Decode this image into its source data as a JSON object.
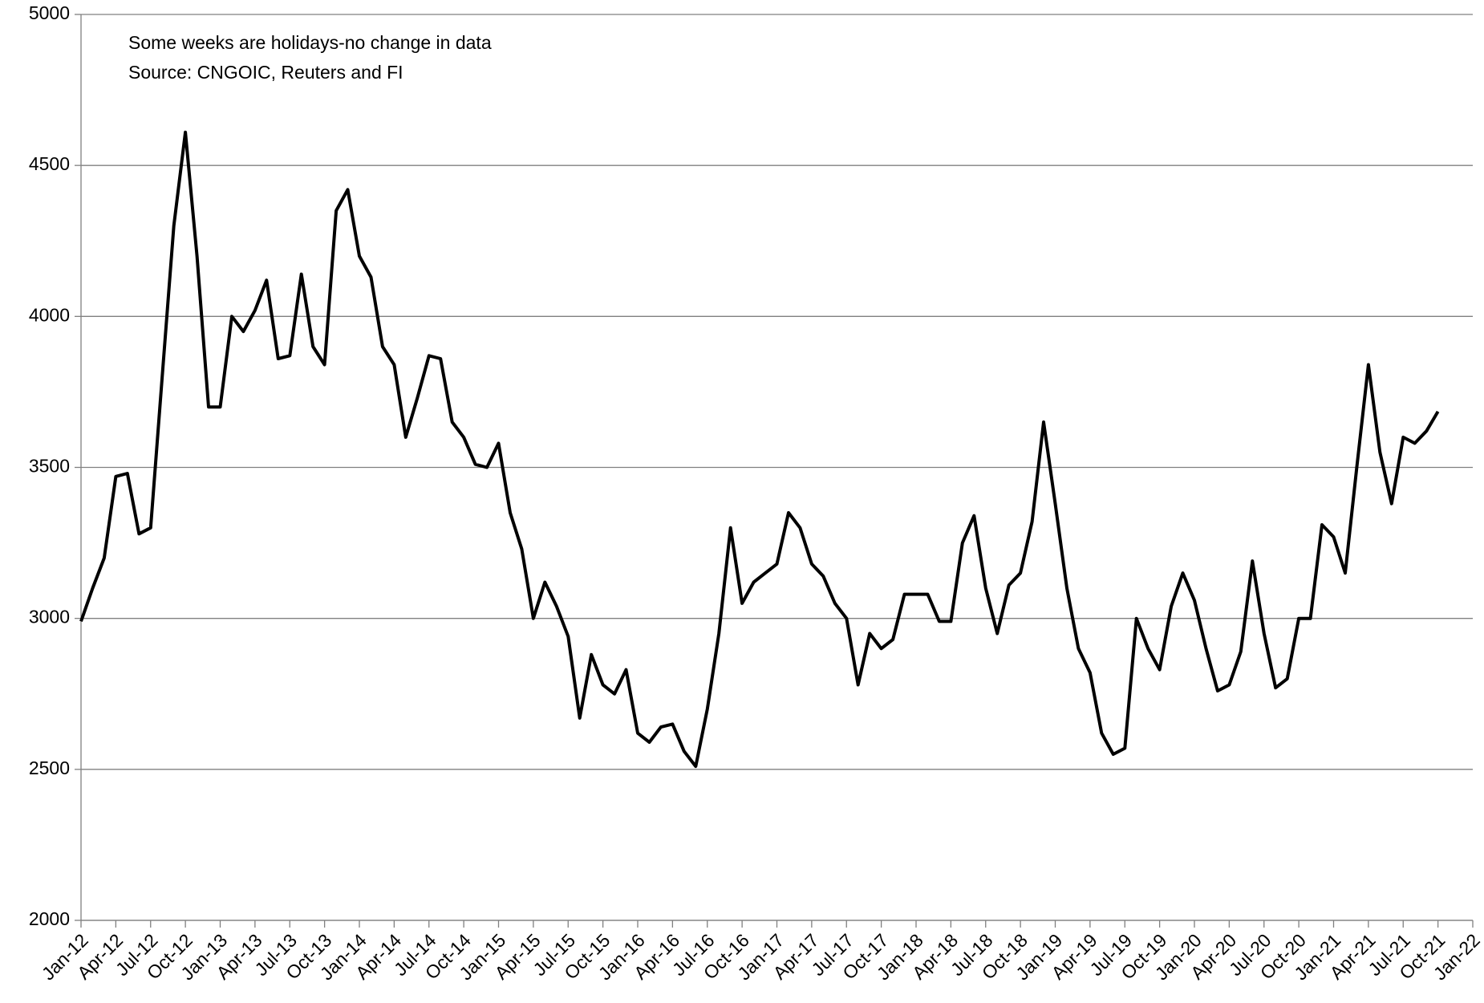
{
  "chart_data": {
    "type": "line",
    "annotations": [
      "Some weeks are holidays-no change in data",
      "Source: CNGOIC, Reuters and FI"
    ],
    "x": [
      "2012-01",
      "2012-02",
      "2012-03",
      "2012-04",
      "2012-05",
      "2012-06",
      "2012-07",
      "2012-08",
      "2012-09",
      "2012-10",
      "2012-11",
      "2012-12",
      "2013-01",
      "2013-02",
      "2013-03",
      "2013-04",
      "2013-05",
      "2013-06",
      "2013-07",
      "2013-08",
      "2013-09",
      "2013-10",
      "2013-11",
      "2013-12",
      "2014-01",
      "2014-02",
      "2014-03",
      "2014-04",
      "2014-05",
      "2014-06",
      "2014-07",
      "2014-08",
      "2014-09",
      "2014-10",
      "2014-11",
      "2014-12",
      "2015-01",
      "2015-02",
      "2015-03",
      "2015-04",
      "2015-05",
      "2015-06",
      "2015-07",
      "2015-08",
      "2015-09",
      "2015-10",
      "2015-11",
      "2015-12",
      "2016-01",
      "2016-02",
      "2016-03",
      "2016-04",
      "2016-05",
      "2016-06",
      "2016-07",
      "2016-08",
      "2016-09",
      "2016-10",
      "2016-11",
      "2016-12",
      "2017-01",
      "2017-02",
      "2017-03",
      "2017-04",
      "2017-05",
      "2017-06",
      "2017-07",
      "2017-08",
      "2017-09",
      "2017-10",
      "2017-11",
      "2017-12",
      "2018-01",
      "2018-02",
      "2018-03",
      "2018-04",
      "2018-05",
      "2018-06",
      "2018-07",
      "2018-08",
      "2018-09",
      "2018-10",
      "2018-11",
      "2018-12",
      "2019-01",
      "2019-02",
      "2019-03",
      "2019-04",
      "2019-05",
      "2019-06",
      "2019-07",
      "2019-08",
      "2019-09",
      "2019-10",
      "2019-11",
      "2019-12",
      "2020-01",
      "2020-02",
      "2020-03",
      "2020-04",
      "2020-05",
      "2020-06",
      "2020-07",
      "2020-08",
      "2020-09",
      "2020-10",
      "2020-11",
      "2020-12",
      "2021-01",
      "2021-02",
      "2021-03",
      "2021-04",
      "2021-05",
      "2021-06",
      "2021-07",
      "2021-08",
      "2021-09",
      "2021-10"
    ],
    "values": [
      2990,
      3100,
      3200,
      3470,
      3480,
      3280,
      3300,
      3800,
      4300,
      4610,
      4200,
      3700,
      3700,
      4000,
      3950,
      4020,
      4120,
      3860,
      3870,
      4140,
      3900,
      3840,
      4350,
      4420,
      4200,
      4130,
      3900,
      3840,
      3600,
      3730,
      3870,
      3860,
      3650,
      3600,
      3510,
      3500,
      3580,
      3350,
      3230,
      3000,
      3120,
      3040,
      2940,
      2670,
      2880,
      2780,
      2750,
      2830,
      2620,
      2590,
      2640,
      2650,
      2560,
      2510,
      2700,
      2950,
      3300,
      3050,
      3120,
      3150,
      3180,
      3350,
      3300,
      3180,
      3140,
      3050,
      3000,
      2780,
      2950,
      2900,
      2930,
      3080,
      3080,
      3080,
      2990,
      2990,
      3250,
      3340,
      3100,
      2950,
      3110,
      3150,
      3320,
      3650,
      3380,
      3100,
      2900,
      2820,
      2620,
      2550,
      2570,
      3000,
      2900,
      2830,
      3040,
      3150,
      3060,
      2900,
      2760,
      2780,
      2890,
      3190,
      2950,
      2770,
      2800,
      3000,
      3000,
      3310,
      3270,
      3150,
      3500,
      3840,
      3550,
      3380,
      3600,
      3580,
      3620,
      3685
    ],
    "color": "#000000",
    "xlim": [
      "2012-01",
      "2022-01"
    ],
    "xticks": [
      {
        "value": "2012-01",
        "label": "Jan-12"
      },
      {
        "value": "2012-04",
        "label": "Apr-12"
      },
      {
        "value": "2012-07",
        "label": "Jul-12"
      },
      {
        "value": "2012-10",
        "label": "Oct-12"
      },
      {
        "value": "2013-01",
        "label": "Jan-13"
      },
      {
        "value": "2013-04",
        "label": "Apr-13"
      },
      {
        "value": "2013-07",
        "label": "Jul-13"
      },
      {
        "value": "2013-10",
        "label": "Oct-13"
      },
      {
        "value": "2014-01",
        "label": "Jan-14"
      },
      {
        "value": "2014-04",
        "label": "Apr-14"
      },
      {
        "value": "2014-07",
        "label": "Jul-14"
      },
      {
        "value": "2014-10",
        "label": "Oct-14"
      },
      {
        "value": "2015-01",
        "label": "Jan-15"
      },
      {
        "value": "2015-04",
        "label": "Apr-15"
      },
      {
        "value": "2015-07",
        "label": "Jul-15"
      },
      {
        "value": "2015-10",
        "label": "Oct-15"
      },
      {
        "value": "2016-01",
        "label": "Jan-16"
      },
      {
        "value": "2016-04",
        "label": "Apr-16"
      },
      {
        "value": "2016-07",
        "label": "Jul-16"
      },
      {
        "value": "2016-10",
        "label": "Oct-16"
      },
      {
        "value": "2017-01",
        "label": "Jan-17"
      },
      {
        "value": "2017-04",
        "label": "Apr-17"
      },
      {
        "value": "2017-07",
        "label": "Jul-17"
      },
      {
        "value": "2017-10",
        "label": "Oct-17"
      },
      {
        "value": "2018-01",
        "label": "Jan-18"
      },
      {
        "value": "2018-04",
        "label": "Apr-18"
      },
      {
        "value": "2018-07",
        "label": "Jul-18"
      },
      {
        "value": "2018-10",
        "label": "Oct-18"
      },
      {
        "value": "2019-01",
        "label": "Jan-19"
      },
      {
        "value": "2019-04",
        "label": "Apr-19"
      },
      {
        "value": "2019-07",
        "label": "Jul-19"
      },
      {
        "value": "2019-10",
        "label": "Oct-19"
      },
      {
        "value": "2020-01",
        "label": "Jan-20"
      },
      {
        "value": "2020-04",
        "label": "Apr-20"
      },
      {
        "value": "2020-07",
        "label": "Jul-20"
      },
      {
        "value": "2020-10",
        "label": "Oct-20"
      },
      {
        "value": "2021-01",
        "label": "Jan-21"
      },
      {
        "value": "2021-04",
        "label": "Apr-21"
      },
      {
        "value": "2021-07",
        "label": "Jul-21"
      },
      {
        "value": "2021-10",
        "label": "Oct-21"
      },
      {
        "value": "2022-01",
        "label": "Jan-22"
      }
    ],
    "ylim": [
      2000,
      5000
    ],
    "yticks": [
      2000,
      2500,
      3000,
      3500,
      4000,
      4500,
      5000
    ],
    "grid": true
  }
}
